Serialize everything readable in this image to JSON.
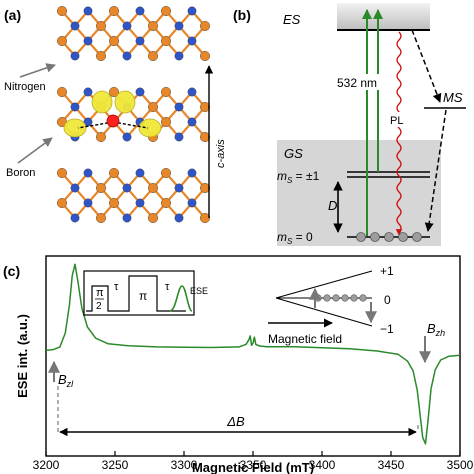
{
  "panels": {
    "a": {
      "label": "(a)",
      "nitrogen_label": "Nitrogen",
      "boron_label": "Boron",
      "axis_label": "c-axis",
      "colors": {
        "boron": "#e8872a",
        "nitrogen": "#2f55c8",
        "bond": "#e8872a",
        "defect": "#ff2020",
        "spin_density": "#f0e83a"
      }
    },
    "b": {
      "label": "(b)",
      "es_label": "ES",
      "gs_label": "GS",
      "ms_label": "MS",
      "laser_label": "532 nm",
      "pl_label": "PL",
      "d_label": "D",
      "level_pm1": "m",
      "level_pm1_sub": "S",
      "level_pm1_value": " = ±1",
      "level_0": "m",
      "level_0_sub": "S",
      "level_0_value": " = 0",
      "colors": {
        "laser": "#2a8a2a",
        "pl": "#cc1111",
        "box": "#d6d6d6"
      }
    },
    "c": {
      "label": "(c)",
      "pulse_pi2_num": "π",
      "pulse_pi2_den": "2",
      "pulse_tau1": "τ",
      "pulse_pi": "π",
      "pulse_tau2": "τ",
      "pulse_ese": "ESE",
      "level_p1": "+1",
      "level_0": "0",
      "level_m1": "−1",
      "magnetic_field_label": "Magnetic field",
      "bzl_label": "B",
      "bzl_sub": "zl",
      "bzh_label": "B",
      "bzh_sub": "zh",
      "deltab_label": "ΔB"
    }
  },
  "chart_data": {
    "type": "line",
    "xlabel": "Magnetic Field (mT)",
    "ylabel": "ESE int. (a.u.)",
    "xlim": [
      3200,
      3500
    ],
    "xticks": [
      "3200",
      "3250",
      "3300",
      "3350",
      "3400",
      "3450",
      "3500"
    ],
    "series": [
      {
        "color": "#2a8a2a",
        "x": [
          3200,
          3205,
          3210,
          3214,
          3217,
          3219,
          3221,
          3223,
          3226,
          3230,
          3236,
          3245,
          3260,
          3280,
          3300,
          3320,
          3340,
          3345,
          3347,
          3348,
          3349,
          3350,
          3351,
          3352,
          3355,
          3360,
          3380,
          3400,
          3420,
          3440,
          3455,
          3462,
          3466,
          3469,
          3471,
          3473,
          3475,
          3477,
          3479,
          3482,
          3486,
          3492,
          3500
        ],
        "y": [
          0.06,
          0.07,
          0.1,
          0.25,
          0.55,
          0.85,
          0.97,
          0.8,
          0.5,
          0.3,
          0.18,
          0.12,
          0.1,
          0.09,
          0.09,
          0.09,
          0.1,
          0.13,
          0.18,
          0.22,
          0.12,
          0.14,
          0.2,
          0.12,
          0.1,
          0.09,
          0.09,
          0.08,
          0.07,
          0.05,
          0.02,
          -0.05,
          -0.15,
          -0.35,
          -0.6,
          -0.85,
          -0.92,
          -0.65,
          -0.35,
          -0.15,
          -0.05,
          -0.01,
          0.0
        ]
      }
    ],
    "annotations": [
      "Bzl",
      "Bzh",
      "ΔB"
    ]
  }
}
